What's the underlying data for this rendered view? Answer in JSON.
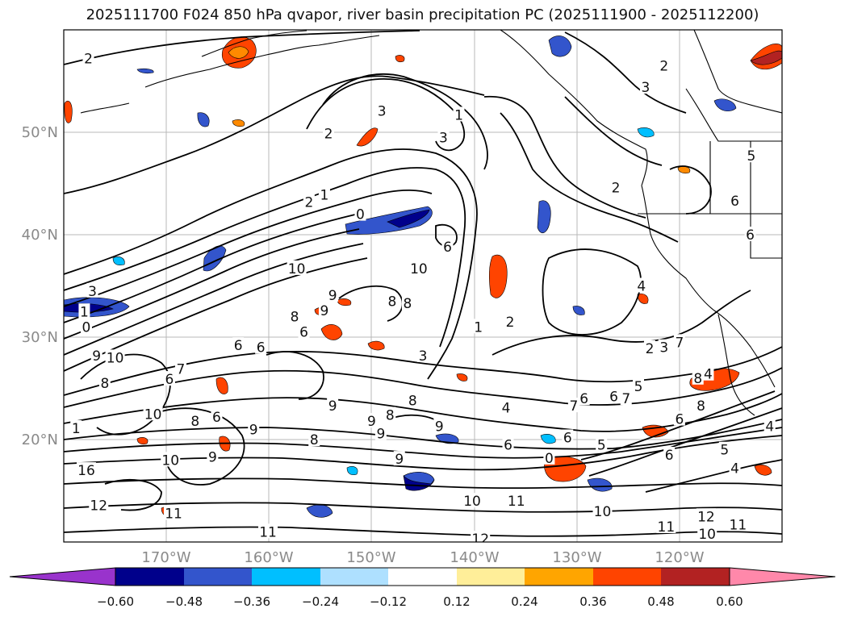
{
  "title": "2025111700 F024 850 hPa qvapor, river basin precipitation PC (2025111900 - 2025112200)",
  "map": {
    "lon_range": [
      -180,
      -110
    ],
    "lat_range": [
      10,
      60
    ],
    "projection": "PlateCarree",
    "gridlines": true,
    "lat_ticks": [
      {
        "value": 20,
        "label": "20°N"
      },
      {
        "value": 30,
        "label": "30°N"
      },
      {
        "value": 40,
        "label": "40°N"
      },
      {
        "value": 50,
        "label": "50°N"
      }
    ],
    "lon_ticks": [
      {
        "value": -170,
        "label": "170°W"
      },
      {
        "value": -160,
        "label": "160°W"
      },
      {
        "value": -150,
        "label": "150°W"
      },
      {
        "value": -140,
        "label": "140°W"
      },
      {
        "value": -130,
        "label": "130°W"
      },
      {
        "value": -120,
        "label": "120°W"
      }
    ]
  },
  "colorbar": {
    "extend": "both",
    "colors": [
      "#9933cc",
      "#00008b",
      "#3355cc",
      "#00bfff",
      "#aee0ff",
      "#ffffff",
      "#ffee99",
      "#ffa500",
      "#ff4400",
      "#b22222",
      "#ff88aa"
    ],
    "ticks": [
      "−0.60",
      "−0.48",
      "−0.36",
      "−0.24",
      "−0.12",
      "0.12",
      "0.24",
      "0.36",
      "0.48",
      "0.60"
    ]
  },
  "contour_labels": [
    {
      "text": "2",
      "lon": -177.6,
      "lat": 57.2
    },
    {
      "text": "3",
      "lon": -149.0,
      "lat": 52.1
    },
    {
      "text": "2",
      "lon": -154.2,
      "lat": 49.9
    },
    {
      "text": "1",
      "lon": -141.5,
      "lat": 51.7
    },
    {
      "text": "3",
      "lon": -143.0,
      "lat": 49.5
    },
    {
      "text": "2",
      "lon": -121.5,
      "lat": 56.5
    },
    {
      "text": "3",
      "lon": -123.3,
      "lat": 54.4
    },
    {
      "text": "2",
      "lon": -126.2,
      "lat": 44.6
    },
    {
      "text": "5",
      "lon": -113.0,
      "lat": 47.7
    },
    {
      "text": "6",
      "lon": -114.6,
      "lat": 43.3
    },
    {
      "text": "6",
      "lon": -113.1,
      "lat": 40.0
    },
    {
      "text": "2",
      "lon": -156.1,
      "lat": 43.2
    },
    {
      "text": "1",
      "lon": -154.6,
      "lat": 43.9
    },
    {
      "text": "0",
      "lon": -151.1,
      "lat": 42.0
    },
    {
      "text": "6",
      "lon": -142.6,
      "lat": 38.8
    },
    {
      "text": "10",
      "lon": -145.4,
      "lat": 36.7
    },
    {
      "text": "10",
      "lon": -157.3,
      "lat": 36.7
    },
    {
      "text": "9",
      "lon": -153.8,
      "lat": 34.1
    },
    {
      "text": "8",
      "lon": -157.5,
      "lat": 32.0
    },
    {
      "text": "9",
      "lon": -154.6,
      "lat": 32.6
    },
    {
      "text": "8",
      "lon": -148.0,
      "lat": 33.5
    },
    {
      "text": "4",
      "lon": -123.7,
      "lat": 35.0
    },
    {
      "text": "3",
      "lon": -177.2,
      "lat": 34.5
    },
    {
      "text": "1",
      "lon": -178.0,
      "lat": 32.5
    },
    {
      "text": "0",
      "lon": -177.8,
      "lat": 31.0
    },
    {
      "text": "6",
      "lon": -156.6,
      "lat": 30.5
    },
    {
      "text": "6",
      "lon": -163.0,
      "lat": 29.2
    },
    {
      "text": "6",
      "lon": -160.8,
      "lat": 29.0
    },
    {
      "text": "8",
      "lon": -146.5,
      "lat": 33.3
    },
    {
      "text": "3",
      "lon": -145.0,
      "lat": 28.2
    },
    {
      "text": "2",
      "lon": -136.5,
      "lat": 31.5
    },
    {
      "text": "1",
      "lon": -139.6,
      "lat": 31.0
    },
    {
      "text": "2",
      "lon": -122.9,
      "lat": 28.9
    },
    {
      "text": "3",
      "lon": -121.5,
      "lat": 29.0
    },
    {
      "text": "7",
      "lon": -120.0,
      "lat": 29.5
    },
    {
      "text": "4",
      "lon": -117.2,
      "lat": 26.4
    },
    {
      "text": "8",
      "lon": -118.2,
      "lat": 26.0
    },
    {
      "text": "7",
      "lon": -125.2,
      "lat": 24.0
    },
    {
      "text": "6",
      "lon": -126.4,
      "lat": 24.2
    },
    {
      "text": "5",
      "lon": -124.0,
      "lat": 25.2
    },
    {
      "text": "4",
      "lon": -136.9,
      "lat": 23.1
    },
    {
      "text": "7",
      "lon": -130.3,
      "lat": 23.3
    },
    {
      "text": "6",
      "lon": -129.3,
      "lat": 24.0
    },
    {
      "text": "8",
      "lon": -117.9,
      "lat": 23.3
    },
    {
      "text": "6",
      "lon": -120.0,
      "lat": 22.0
    },
    {
      "text": "6",
      "lon": -130.9,
      "lat": 20.2
    },
    {
      "text": "5",
      "lon": -127.6,
      "lat": 19.5
    },
    {
      "text": "6",
      "lon": -136.7,
      "lat": 19.5
    },
    {
      "text": "6",
      "lon": -121.0,
      "lat": 18.5
    },
    {
      "text": "5",
      "lon": -115.6,
      "lat": 19.0
    },
    {
      "text": "4",
      "lon": -114.6,
      "lat": 17.2
    },
    {
      "text": "4",
      "lon": -111.2,
      "lat": 21.3
    },
    {
      "text": "0",
      "lon": -132.7,
      "lat": 18.2
    },
    {
      "text": "10",
      "lon": -175.0,
      "lat": 28.0
    },
    {
      "text": "9",
      "lon": -176.8,
      "lat": 28.2
    },
    {
      "text": "8",
      "lon": -176.0,
      "lat": 25.5
    },
    {
      "text": "6",
      "lon": -169.7,
      "lat": 25.9
    },
    {
      "text": "7",
      "lon": -168.6,
      "lat": 26.9
    },
    {
      "text": "10",
      "lon": -171.3,
      "lat": 22.5
    },
    {
      "text": "6",
      "lon": -165.1,
      "lat": 22.2
    },
    {
      "text": "8",
      "lon": -167.2,
      "lat": 21.8
    },
    {
      "text": "9",
      "lon": -161.5,
      "lat": 21.0
    },
    {
      "text": "9",
      "lon": -153.8,
      "lat": 23.3
    },
    {
      "text": "9",
      "lon": -150.0,
      "lat": 21.8
    },
    {
      "text": "8",
      "lon": -148.2,
      "lat": 22.4
    },
    {
      "text": "9",
      "lon": -143.4,
      "lat": 21.3
    },
    {
      "text": "8",
      "lon": -146.0,
      "lat": 23.8
    },
    {
      "text": "9",
      "lon": -149.1,
      "lat": 20.6
    },
    {
      "text": "8",
      "lon": -155.6,
      "lat": 20.0
    },
    {
      "text": "1",
      "lon": -178.8,
      "lat": 21.1
    },
    {
      "text": "16",
      "lon": -177.8,
      "lat": 17.0
    },
    {
      "text": "12",
      "lon": -176.6,
      "lat": 13.6
    },
    {
      "text": "11",
      "lon": -169.3,
      "lat": 12.8
    },
    {
      "text": "10",
      "lon": -169.6,
      "lat": 18.0
    },
    {
      "text": "9",
      "lon": -165.5,
      "lat": 18.3
    },
    {
      "text": "9",
      "lon": -147.3,
      "lat": 18.1
    },
    {
      "text": "10",
      "lon": -140.2,
      "lat": 14.0
    },
    {
      "text": "11",
      "lon": -135.9,
      "lat": 14.0
    },
    {
      "text": "10",
      "lon": -127.5,
      "lat": 13.0
    },
    {
      "text": "11",
      "lon": -121.3,
      "lat": 11.5
    },
    {
      "text": "12",
      "lon": -117.4,
      "lat": 12.5
    },
    {
      "text": "10",
      "lon": -117.3,
      "lat": 10.8
    },
    {
      "text": "11",
      "lon": -114.3,
      "lat": 11.7
    },
    {
      "text": "11",
      "lon": -160.1,
      "lat": 11.0
    },
    {
      "text": "12",
      "lon": -139.4,
      "lat": 10.3
    }
  ]
}
